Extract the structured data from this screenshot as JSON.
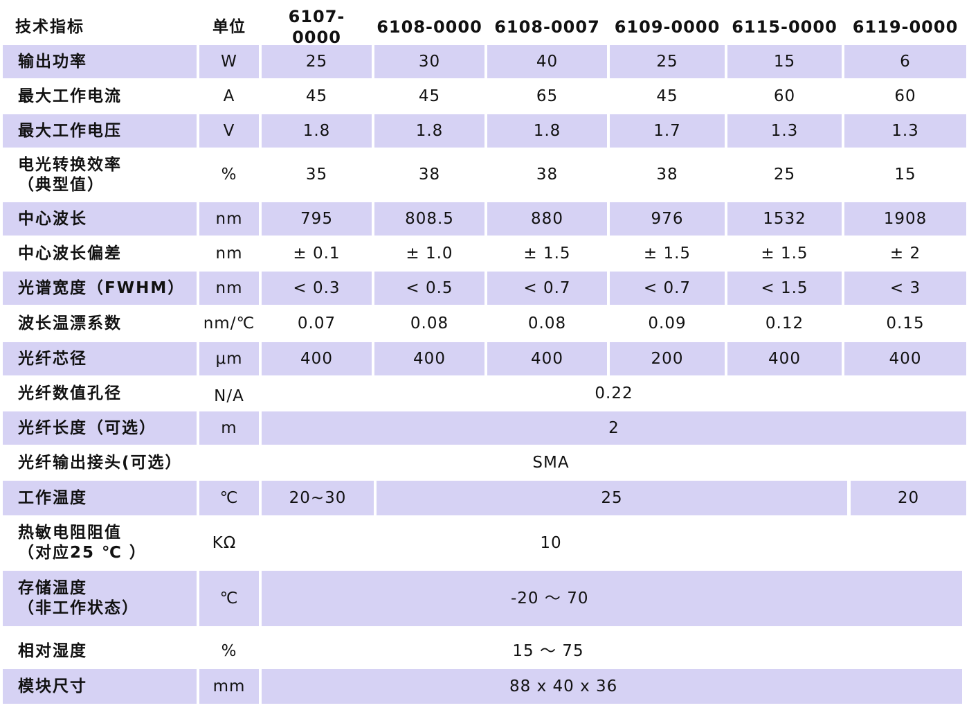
{
  "header": {
    "param": "技术指标",
    "unit": "单位",
    "models": [
      "6107- 0000",
      "6108-0000",
      "6108-0007",
      "6109-0000",
      "6115-0000",
      "6119-0000"
    ]
  },
  "rows": [
    {
      "label": "输出功率",
      "unit": "W",
      "values": [
        "25",
        "30",
        "40",
        "25",
        "15",
        "6"
      ]
    },
    {
      "label": "最大工作电流",
      "unit": "A",
      "values": [
        "45",
        "45",
        "65",
        "45",
        "60",
        "60"
      ]
    },
    {
      "label": "最大工作电压",
      "unit": "V",
      "values": [
        "1.8",
        "1.8",
        "1.8",
        "1.7",
        "1.3",
        "1.3"
      ]
    },
    {
      "label": "电光转换效率\n（典型值）",
      "unit": "%",
      "values": [
        "35",
        "38",
        "38",
        "38",
        "25",
        "15"
      ]
    },
    {
      "label": "中心波长",
      "unit": "nm",
      "values": [
        "795",
        "808.5",
        "880",
        "976",
        "1532",
        "1908"
      ]
    },
    {
      "label": "中心波长偏差",
      "unit": "nm",
      "values": [
        "± 0.1",
        "± 1.0",
        "± 1.5",
        "± 1.5",
        "± 1.5",
        "± 2"
      ]
    },
    {
      "label": "光谱宽度（FWHM）",
      "unit": "nm",
      "values": [
        "< 0.3",
        "< 0.5",
        "< 0.7",
        "< 0.7",
        "< 1.5",
        "< 3"
      ]
    },
    {
      "label": "波长温漂系数",
      "unit": "nm/℃",
      "values": [
        "0.07",
        "0.08",
        "0.08",
        "0.09",
        "0.12",
        "0.15"
      ]
    },
    {
      "label": "光纤芯径",
      "unit": "μm",
      "values": [
        "400",
        "400",
        "400",
        "200",
        "400",
        "400"
      ]
    },
    {
      "label": "光纤数值孔径",
      "unit": "N/A",
      "values": [
        "0.22"
      ]
    },
    {
      "label": "光纤长度（可选）",
      "unit": "m",
      "values": [
        "2"
      ]
    },
    {
      "label": "光纤输出接头(可选）",
      "unit": "",
      "values": [
        "SMA"
      ]
    },
    {
      "label": "工作温度",
      "unit": "℃",
      "values": [
        "20~30",
        "25",
        "20"
      ]
    },
    {
      "label": "热敏电阻阻值\n（对应25 ℃ ）",
      "unit": "KΩ",
      "values": [
        "10"
      ]
    },
    {
      "label": "存储温度\n（非工作状态）",
      "unit": "℃",
      "values": [
        "-20 ～ 70"
      ]
    },
    {
      "label": "相对湿度",
      "unit": "%",
      "values": [
        "15 ～ 75"
      ]
    },
    {
      "label": "模块尺寸",
      "unit": "mm",
      "values": [
        "88 x 40 x 36"
      ]
    }
  ]
}
